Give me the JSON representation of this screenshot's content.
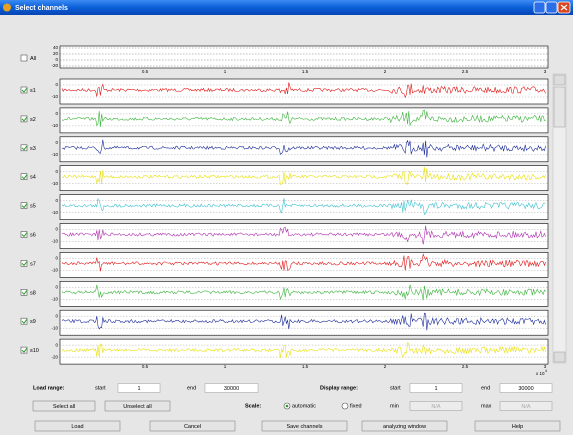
{
  "window": {
    "title": "Select channels"
  },
  "channels": {
    "all": "All",
    "list": [
      {
        "label": "s1",
        "yticks": [
          "0",
          "-10"
        ]
      },
      {
        "label": "s2",
        "yticks": [
          "0",
          "-10"
        ]
      },
      {
        "label": "s3",
        "yticks": [
          "0",
          "-10"
        ]
      },
      {
        "label": "s4",
        "yticks": [
          "0",
          "-10"
        ]
      },
      {
        "label": "s5",
        "yticks": [
          "0",
          "-10"
        ]
      },
      {
        "label": "s6",
        "yticks": [
          "0",
          "-10"
        ]
      },
      {
        "label": "s7",
        "yticks": [
          "0",
          "-10"
        ]
      },
      {
        "label": "s8",
        "yticks": [
          "0",
          "-10"
        ]
      },
      {
        "label": "s9",
        "yticks": [
          "0",
          "-10"
        ]
      },
      {
        "label": "s10",
        "yticks": [
          "0",
          "-20"
        ]
      }
    ]
  },
  "top_axis": {
    "yticks": [
      "40",
      "20",
      "0",
      "-20"
    ],
    "xticks": [
      "0.5",
      "1",
      "1.5",
      "2",
      "2.5",
      "3"
    ]
  },
  "bottom_axis": {
    "xticks": [
      "0.5",
      "1",
      "1.5",
      "2",
      "2.5",
      "3"
    ],
    "multiplier": "x 10",
    "exponent": "4"
  },
  "controls": {
    "load_range": {
      "label": "Load range:",
      "start_label": "start",
      "start": "1",
      "end_label": "end",
      "end": "30000"
    },
    "display_range": {
      "label": "Display range:",
      "start_label": "start",
      "start": "1",
      "end_label": "end",
      "end": "30000"
    },
    "scale": {
      "label": "Scale:",
      "automatic": "automatic",
      "fixed": "fixed",
      "min_label": "min",
      "min": "N/A",
      "max_label": "max",
      "max": "N/A"
    },
    "select_all": "Select all",
    "unselect_all": "Unselect all",
    "buttons": [
      "Load",
      "Cancel",
      "Save channels",
      "analyzing window",
      "Help"
    ]
  }
}
